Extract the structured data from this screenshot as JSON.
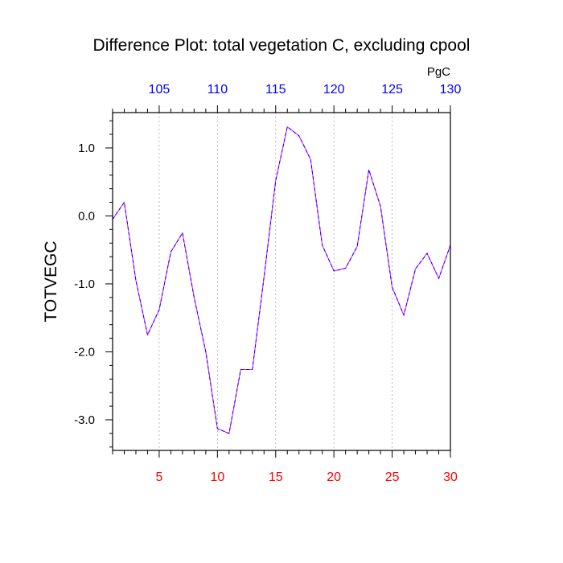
{
  "chart_data": {
    "type": "line",
    "title": "Difference Plot: total vegetation C, excluding cpool",
    "ylabel": "TOTVEGC",
    "units_label": "PgC",
    "x": [
      1,
      2,
      3,
      4,
      5,
      6,
      7,
      8,
      9,
      10,
      11,
      12,
      13,
      14,
      15,
      16,
      17,
      18,
      19,
      20,
      21,
      22,
      23,
      24,
      25,
      26,
      27,
      28,
      29,
      30
    ],
    "series": [
      {
        "values": [
          -0.05,
          0.2,
          -0.95,
          -1.75,
          -1.38,
          -0.53,
          -0.25,
          -1.2,
          -2.0,
          -3.13,
          -3.2,
          -2.26,
          -2.26,
          -0.9,
          0.52,
          1.31,
          1.18,
          0.83,
          -0.43,
          -0.81,
          -0.77,
          -0.45,
          0.68,
          0.14,
          -1.05,
          -1.46,
          -0.78,
          -0.55,
          -0.92,
          -0.43
        ]
      }
    ],
    "xlim": [
      1,
      30
    ],
    "ylim": [
      -3.45,
      1.52
    ],
    "bottom_axis": {
      "ticks": [
        5,
        10,
        15,
        20,
        25,
        30
      ],
      "labels": [
        "5",
        "10",
        "15",
        "20",
        "25",
        "30"
      ],
      "color": "#ff0000"
    },
    "top_axis": {
      "ticks": [
        5,
        10,
        15,
        20,
        25,
        30
      ],
      "labels": [
        "105",
        "110",
        "115",
        "120",
        "125",
        "130"
      ],
      "color": "#0000ff"
    },
    "y_ticks": [
      1.0,
      0.0,
      -1.0,
      -2.0,
      -3.0
    ],
    "y_tick_labels": [
      "1.0",
      "0.0",
      "-1.0",
      "-2.0",
      "-3.0"
    ],
    "vertical_gridlines": true,
    "line_colors": {
      "dash1": "#0000ff",
      "dash2": "#ff00ff"
    }
  }
}
